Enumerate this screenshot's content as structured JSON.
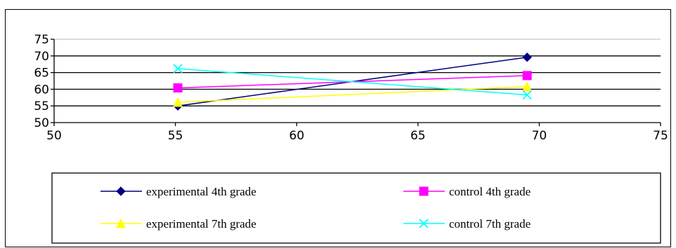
{
  "chart_data": {
    "type": "line",
    "title": "",
    "xlabel": "",
    "ylabel": "",
    "xlim": [
      50,
      75
    ],
    "ylim": [
      50,
      75
    ],
    "x_ticks": [
      50,
      55,
      60,
      65,
      70,
      75
    ],
    "y_ticks": [
      50,
      55,
      60,
      65,
      70,
      75
    ],
    "grid": "horizontal",
    "legend_position": "bottom",
    "series": [
      {
        "name": "experimental 4th grade",
        "color": "#000080",
        "marker": "diamond",
        "x": [
          55.1,
          69.5
        ],
        "y": [
          55.0,
          69.6
        ]
      },
      {
        "name": "control 4th grade",
        "color": "#ff00ff",
        "marker": "square",
        "x": [
          55.1,
          69.5
        ],
        "y": [
          60.4,
          64.1
        ]
      },
      {
        "name": "experimental 7th grade",
        "color": "#ffff00",
        "marker": "triangle",
        "x": [
          55.1,
          69.5
        ],
        "y": [
          56.1,
          60.8
        ]
      },
      {
        "name": "control 7th grade",
        "color": "#00ffff",
        "marker": "x",
        "x": [
          55.1,
          69.5
        ],
        "y": [
          66.2,
          58.3
        ]
      }
    ]
  }
}
